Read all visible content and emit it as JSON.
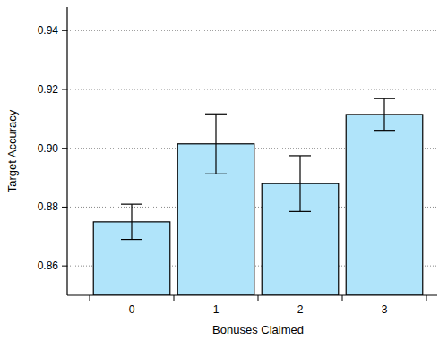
{
  "chart_data": {
    "type": "bar",
    "x_label": "Bonuses Claimed",
    "y_label": "Target Accuracy",
    "categories": [
      "0",
      "1",
      "2",
      "3"
    ],
    "values": [
      0.875,
      0.9015,
      0.888,
      0.9115
    ],
    "errors": [
      0.006,
      0.0102,
      0.0095,
      0.0054
    ],
    "color": "#b0e4fa",
    "ylim": [
      0.85,
      0.948
    ],
    "yticks": [
      0.86,
      0.88,
      {
        "value": 0.9,
        "label": "0.90"
      },
      0.92,
      0.94
    ],
    "grid": true
  }
}
